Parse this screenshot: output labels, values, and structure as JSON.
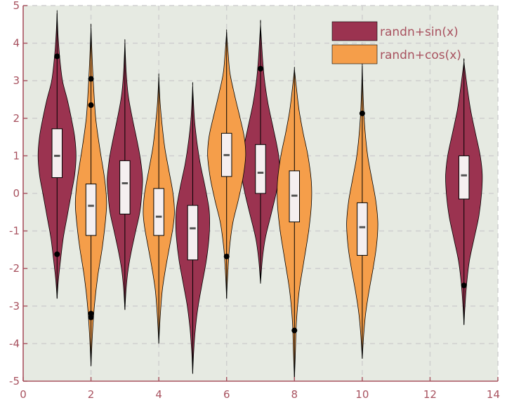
{
  "chart_data": {
    "type": "violin",
    "xlim": [
      0,
      14
    ],
    "ylim": [
      -5,
      5
    ],
    "x_ticks": [
      0,
      2,
      4,
      6,
      8,
      10,
      12,
      14
    ],
    "y_ticks": [
      -5,
      -4,
      -3,
      -2,
      -1,
      0,
      1,
      2,
      3,
      4,
      5
    ],
    "x_tick_labels": [
      "0",
      "2",
      "4",
      "6",
      "8",
      "10",
      "12",
      "14"
    ],
    "y_tick_labels": [
      "-5",
      "-4",
      "-3",
      "-2",
      "-1",
      "0",
      "1",
      "2",
      "3",
      "4",
      "5"
    ],
    "grid": true,
    "legend_position": "top-right",
    "colors": {
      "background": "#e6eae2",
      "axis": "#a8525f",
      "grid": "#cfcfcf",
      "box_fill": "#f5eff0",
      "whisker": "#000000",
      "outlier": "#000000"
    },
    "series": [
      {
        "name": "randn+sin(x)",
        "color": "#9b3350",
        "violins": [
          {
            "x": 1,
            "min": -2.8,
            "max": 4.8,
            "median": 1.0,
            "q1": 0.42,
            "q3": 1.72,
            "whisker_low": -1.6,
            "whisker_high": 3.65,
            "outliers": [
              3.65,
              -1.62
            ],
            "profile": [
              [
                -2.8,
                0.0
              ],
              [
                -2.3,
                0.04
              ],
              [
                -1.8,
                0.1
              ],
              [
                -1.2,
                0.18
              ],
              [
                -0.6,
                0.3
              ],
              [
                0.0,
                0.42
              ],
              [
                0.5,
                0.52
              ],
              [
                1.0,
                0.56
              ],
              [
                1.5,
                0.52
              ],
              [
                2.0,
                0.42
              ],
              [
                2.5,
                0.3
              ],
              [
                3.0,
                0.16
              ],
              [
                3.6,
                0.08
              ],
              [
                4.2,
                0.03
              ],
              [
                4.8,
                0.0
              ]
            ]
          },
          {
            "x": 3,
            "min": -3.1,
            "max": 4.0,
            "median": 0.27,
            "q1": -0.55,
            "q3": 0.87,
            "whisker_low": -1.7,
            "whisker_high": 2.6,
            "outliers": [],
            "profile": [
              [
                -3.1,
                0.0
              ],
              [
                -2.5,
                0.04
              ],
              [
                -2.0,
                0.1
              ],
              [
                -1.5,
                0.2
              ],
              [
                -1.0,
                0.32
              ],
              [
                -0.5,
                0.44
              ],
              [
                0.0,
                0.5
              ],
              [
                0.4,
                0.52
              ],
              [
                0.9,
                0.46
              ],
              [
                1.4,
                0.36
              ],
              [
                2.0,
                0.22
              ],
              [
                2.6,
                0.1
              ],
              [
                3.2,
                0.04
              ],
              [
                4.0,
                0.0
              ]
            ]
          },
          {
            "x": 5,
            "min": -4.8,
            "max": 2.85,
            "median": -0.93,
            "q1": -1.77,
            "q3": -0.32,
            "whisker_low": -3.1,
            "whisker_high": 1.45,
            "outliers": [],
            "profile": [
              [
                -4.8,
                0.0
              ],
              [
                -4.2,
                0.03
              ],
              [
                -3.6,
                0.08
              ],
              [
                -3.0,
                0.16
              ],
              [
                -2.4,
                0.28
              ],
              [
                -1.8,
                0.4
              ],
              [
                -1.2,
                0.48
              ],
              [
                -0.8,
                0.5
              ],
              [
                -0.4,
                0.48
              ],
              [
                0.2,
                0.36
              ],
              [
                0.8,
                0.22
              ],
              [
                1.4,
                0.12
              ],
              [
                2.0,
                0.05
              ],
              [
                2.85,
                0.0
              ]
            ]
          },
          {
            "x": 7,
            "min": -2.4,
            "max": 4.5,
            "median": 0.55,
            "q1": 0.0,
            "q3": 1.3,
            "whisker_low": -1.2,
            "whisker_high": 3.3,
            "outliers": [
              3.32
            ],
            "profile": [
              [
                -2.4,
                0.0
              ],
              [
                -1.8,
                0.05
              ],
              [
                -1.2,
                0.14
              ],
              [
                -0.6,
                0.3
              ],
              [
                0.0,
                0.46
              ],
              [
                0.4,
                0.54
              ],
              [
                0.8,
                0.56
              ],
              [
                1.2,
                0.5
              ],
              [
                1.8,
                0.36
              ],
              [
                2.4,
                0.22
              ],
              [
                3.0,
                0.12
              ],
              [
                3.6,
                0.06
              ],
              [
                4.5,
                0.0
              ]
            ]
          },
          {
            "x": 13,
            "min": -3.5,
            "max": 3.5,
            "median": 0.48,
            "q1": -0.15,
            "q3": 1.0,
            "whisker_low": -1.6,
            "whisker_high": 2.7,
            "outliers": [
              -2.45
            ],
            "profile": [
              [
                -3.5,
                0.0
              ],
              [
                -3.0,
                0.03
              ],
              [
                -2.4,
                0.08
              ],
              [
                -1.8,
                0.16
              ],
              [
                -1.2,
                0.3
              ],
              [
                -0.6,
                0.44
              ],
              [
                0.0,
                0.52
              ],
              [
                0.5,
                0.54
              ],
              [
                1.0,
                0.48
              ],
              [
                1.6,
                0.34
              ],
              [
                2.2,
                0.2
              ],
              [
                2.8,
                0.1
              ],
              [
                3.5,
                0.0
              ]
            ]
          }
        ]
      },
      {
        "name": "randn+cos(x)",
        "color": "#f59e4a",
        "violins": [
          {
            "x": 2,
            "min": -4.6,
            "max": 4.4,
            "median": -0.33,
            "q1": -1.12,
            "q3": 0.25,
            "whisker_low": -2.7,
            "whisker_high": 2.3,
            "outliers": [
              3.05,
              2.35,
              -3.2,
              -3.3
            ],
            "profile": [
              [
                -4.6,
                0.0
              ],
              [
                -3.8,
                0.04
              ],
              [
                -3.0,
                0.1
              ],
              [
                -2.2,
                0.2
              ],
              [
                -1.4,
                0.34
              ],
              [
                -0.6,
                0.44
              ],
              [
                -0.2,
                0.46
              ],
              [
                0.4,
                0.4
              ],
              [
                1.2,
                0.26
              ],
              [
                2.0,
                0.14
              ],
              [
                2.8,
                0.08
              ],
              [
                3.5,
                0.04
              ],
              [
                4.4,
                0.0
              ]
            ]
          },
          {
            "x": 4,
            "min": -4.0,
            "max": 3.1,
            "median": -0.62,
            "q1": -1.12,
            "q3": 0.13,
            "whisker_low": -2.7,
            "whisker_high": 1.85,
            "outliers": [],
            "profile": [
              [
                -4.0,
                0.0
              ],
              [
                -3.3,
                0.04
              ],
              [
                -2.6,
                0.1
              ],
              [
                -2.0,
                0.2
              ],
              [
                -1.4,
                0.32
              ],
              [
                -0.9,
                0.42
              ],
              [
                -0.5,
                0.46
              ],
              [
                0.0,
                0.42
              ],
              [
                0.6,
                0.3
              ],
              [
                1.2,
                0.18
              ],
              [
                1.8,
                0.1
              ],
              [
                2.4,
                0.04
              ],
              [
                3.1,
                0.0
              ]
            ]
          },
          {
            "x": 6,
            "min": -2.8,
            "max": 4.3,
            "median": 1.02,
            "q1": 0.45,
            "q3": 1.6,
            "whisker_low": -0.7,
            "whisker_high": 3.3,
            "outliers": [
              -1.68
            ],
            "profile": [
              [
                -2.8,
                0.0
              ],
              [
                -2.2,
                0.03
              ],
              [
                -1.5,
                0.08
              ],
              [
                -0.8,
                0.18
              ],
              [
                -0.2,
                0.34
              ],
              [
                0.4,
                0.48
              ],
              [
                1.0,
                0.56
              ],
              [
                1.5,
                0.52
              ],
              [
                2.0,
                0.4
              ],
              [
                2.6,
                0.24
              ],
              [
                3.2,
                0.1
              ],
              [
                3.8,
                0.04
              ],
              [
                4.3,
                0.0
              ]
            ]
          },
          {
            "x": 8,
            "min": -4.95,
            "max": 3.3,
            "median": -0.06,
            "q1": -0.76,
            "q3": 0.6,
            "whisker_low": -2.5,
            "whisker_high": 2.0,
            "outliers": [
              -3.65
            ],
            "profile": [
              [
                -4.95,
                0.0
              ],
              [
                -4.2,
                0.03
              ],
              [
                -3.4,
                0.06
              ],
              [
                -2.6,
                0.14
              ],
              [
                -1.8,
                0.28
              ],
              [
                -1.0,
                0.42
              ],
              [
                -0.3,
                0.5
              ],
              [
                0.3,
                0.5
              ],
              [
                1.0,
                0.4
              ],
              [
                1.6,
                0.26
              ],
              [
                2.2,
                0.14
              ],
              [
                2.8,
                0.06
              ],
              [
                3.3,
                0.0
              ]
            ]
          },
          {
            "x": 10,
            "min": -4.4,
            "max": 3.4,
            "median": -0.9,
            "q1": -1.65,
            "q3": -0.25,
            "whisker_low": -3.1,
            "whisker_high": 1.7,
            "outliers": [
              2.13
            ],
            "profile": [
              [
                -4.4,
                0.0
              ],
              [
                -3.8,
                0.04
              ],
              [
                -3.2,
                0.1
              ],
              [
                -2.6,
                0.2
              ],
              [
                -2.0,
                0.32
              ],
              [
                -1.4,
                0.42
              ],
              [
                -0.8,
                0.46
              ],
              [
                -0.2,
                0.4
              ],
              [
                0.4,
                0.28
              ],
              [
                1.0,
                0.16
              ],
              [
                1.7,
                0.08
              ],
              [
                2.5,
                0.03
              ],
              [
                3.4,
                0.0
              ]
            ]
          }
        ]
      }
    ]
  }
}
